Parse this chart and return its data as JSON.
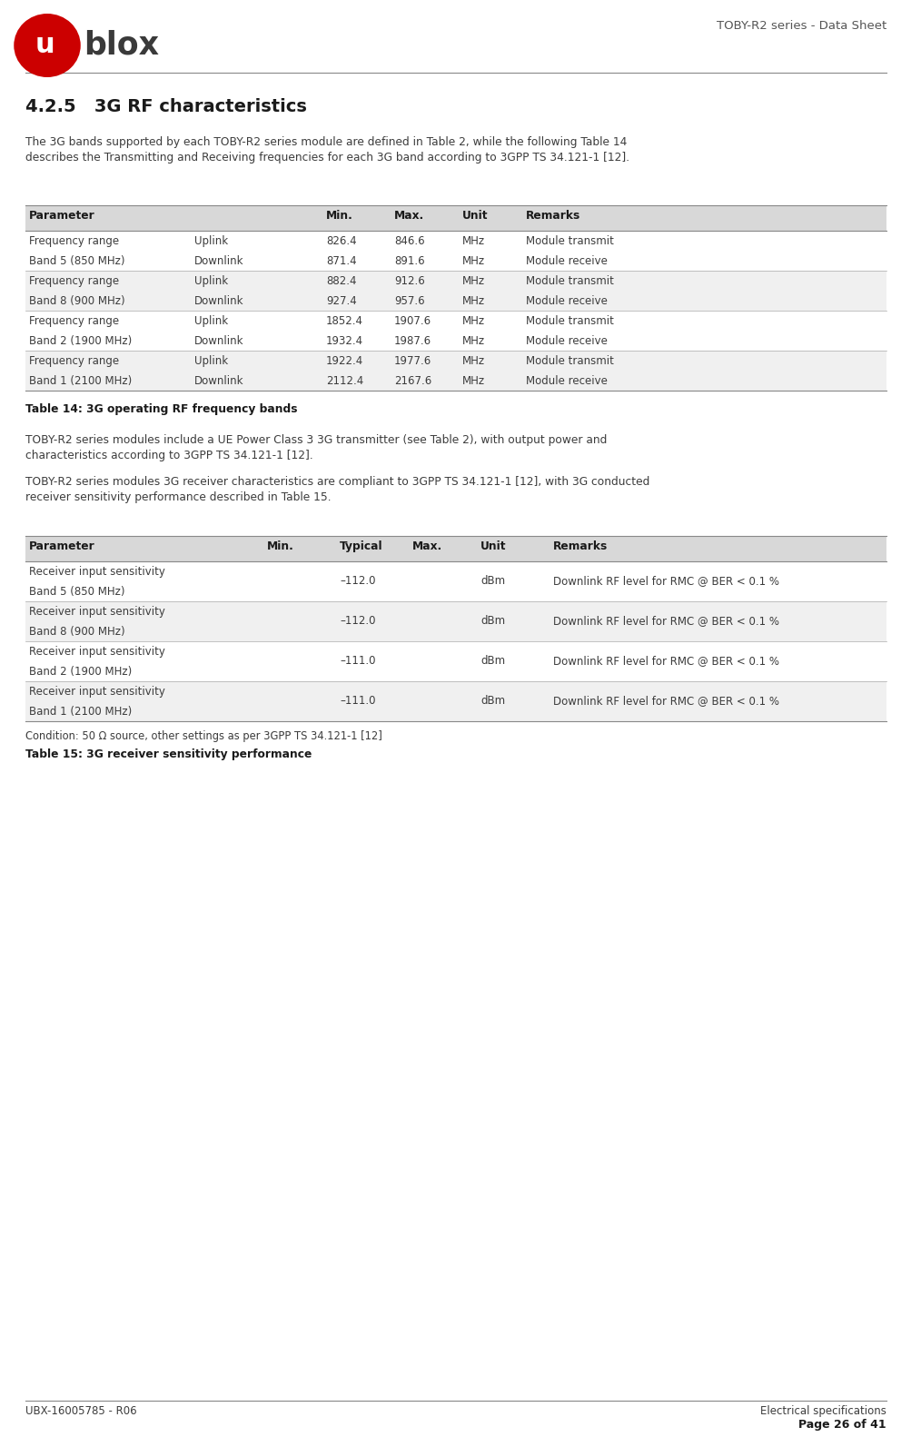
{
  "page_title_right": "TOBY-R2 series - Data Sheet",
  "footer_left": "UBX-16005785 - R06",
  "footer_right_line1": "Electrical specifications",
  "footer_right_line2": "Page 26 of 41",
  "section_title": "4.2.5   3G RF characteristics",
  "intro_text": "The 3G bands supported by each TOBY-R2 series module are defined in Table 2, while the following Table 14\ndescribes the Transmitting and Receiving frequencies for each 3G band according to 3GPP TS 34.121-1 [12].",
  "table1_header": [
    "Parameter",
    "",
    "Min.",
    "Max.",
    "Unit",
    "Remarks"
  ],
  "table1_rows": [
    [
      "Frequency range\nBand 5 (850 MHz)",
      "Uplink\nDownlink",
      "826.4\n871.4",
      "846.6\n891.6",
      "MHz\nMHz",
      "Module transmit\nModule receive"
    ],
    [
      "Frequency range\nBand 8 (900 MHz)",
      "Uplink\nDownlink",
      "882.4\n927.4",
      "912.6\n957.6",
      "MHz\nMHz",
      "Module transmit\nModule receive"
    ],
    [
      "Frequency range\nBand 2 (1900 MHz)",
      "Uplink\nDownlink",
      "1852.4\n1932.4",
      "1907.6\n1987.6",
      "MHz\nMHz",
      "Module transmit\nModule receive"
    ],
    [
      "Frequency range\nBand 1 (2100 MHz)",
      "Uplink\nDownlink",
      "1922.4\n2112.4",
      "1977.6\n2167.6",
      "MHz\nMHz",
      "Module transmit\nModule receive"
    ]
  ],
  "table1_caption": "Table 14: 3G operating RF frequency bands",
  "middle_text1": "TOBY-R2 series modules include a UE Power Class 3 3G transmitter (see Table 2), with output power and\ncharacteristics according to 3GPP TS 34.121-1 [12].",
  "middle_text2": "TOBY-R2 series modules 3G receiver characteristics are compliant to 3GPP TS 34.121-1 [12], with 3G conducted\nreceiver sensitivity performance described in Table 15.",
  "table2_header": [
    "Parameter",
    "Min.",
    "Typical",
    "Max.",
    "Unit",
    "Remarks"
  ],
  "table2_rows": [
    [
      "Receiver input sensitivity\nBand 5 (850 MHz)",
      "",
      "–112.0",
      "",
      "dBm",
      "Downlink RF level for RMC @ BER < 0.1 %"
    ],
    [
      "Receiver input sensitivity\nBand 8 (900 MHz)",
      "",
      "–112.0",
      "",
      "dBm",
      "Downlink RF level for RMC @ BER < 0.1 %"
    ],
    [
      "Receiver input sensitivity\nBand 2 (1900 MHz)",
      "",
      "–111.0",
      "",
      "dBm",
      "Downlink RF level for RMC @ BER < 0.1 %"
    ],
    [
      "Receiver input sensitivity\nBand 1 (2100 MHz)",
      "",
      "–111.0",
      "",
      "dBm",
      "Downlink RF level for RMC @ BER < 0.1 %"
    ]
  ],
  "table2_condition": "Condition: 50 Ω source, other settings as per 3GPP TS 34.121-1 [12]",
  "table2_caption": "Table 15: 3G receiver sensitivity performance",
  "header_bg": "#d8d8d8",
  "row_bg_white": "#ffffff",
  "row_bg_gray": "#f0f0f0",
  "text_color": "#3c3c3c",
  "title_color": "#1a1a1a",
  "border_color": "#aaaaaa",
  "logo_circle_color": "#cc0000"
}
